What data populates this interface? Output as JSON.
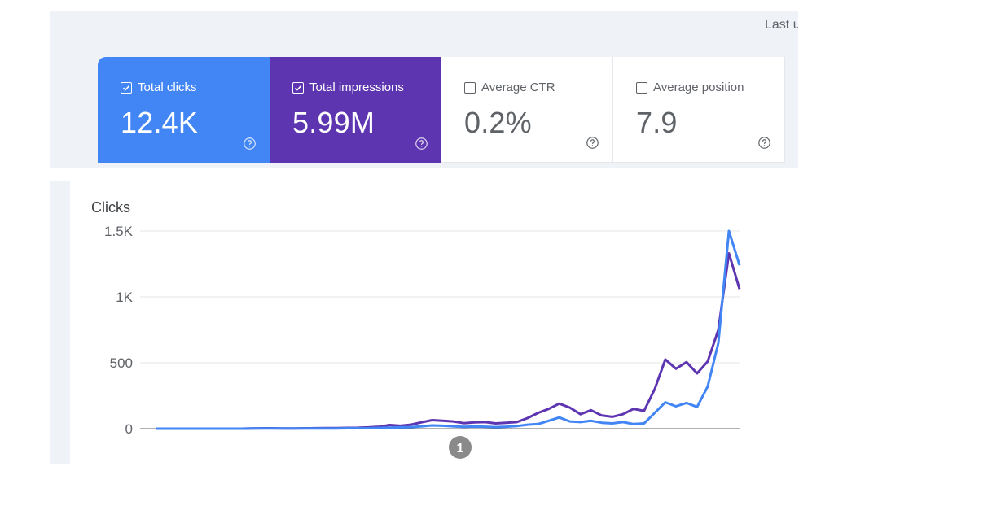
{
  "header": {
    "last_updated_label": "Last updated"
  },
  "cards": [
    {
      "key": "clicks",
      "label": "Total clicks",
      "value": "12.4K",
      "checked": true,
      "color": "#4285f4"
    },
    {
      "key": "impr",
      "label": "Total impressions",
      "value": "5.99M",
      "checked": true,
      "color": "#5e35b1"
    },
    {
      "key": "ctr",
      "label": "Average CTR",
      "value": "0.2%",
      "checked": false
    },
    {
      "key": "pos",
      "label": "Average position",
      "value": "7.9",
      "checked": false
    }
  ],
  "annotation_marker": "1",
  "chart_data": {
    "type": "line",
    "ylabel": "Clicks",
    "ylim": [
      0,
      1500
    ],
    "yticks": [
      0,
      500,
      1000,
      1500
    ],
    "ytick_labels": [
      "0",
      "500",
      "1K",
      "1.5K"
    ],
    "grid": true,
    "series": [
      {
        "color": "#5e35b1",
        "values": [
          0,
          0,
          0,
          0,
          0,
          0,
          0,
          0,
          0,
          2,
          3,
          3,
          2,
          2,
          3,
          4,
          5,
          5,
          6,
          7,
          10,
          15,
          28,
          22,
          30,
          48,
          65,
          60,
          55,
          42,
          48,
          50,
          40,
          45,
          50,
          80,
          120,
          150,
          190,
          160,
          110,
          140,
          100,
          90,
          110,
          150,
          135,
          300,
          525,
          455,
          505,
          420,
          510,
          750,
          1330,
          1060
        ]
      },
      {
        "color": "#4285f4",
        "values": [
          0,
          0,
          0,
          0,
          0,
          0,
          0,
          0,
          0,
          1,
          1,
          1,
          1,
          1,
          1,
          2,
          2,
          2,
          3,
          3,
          4,
          6,
          8,
          10,
          12,
          18,
          25,
          22,
          18,
          14,
          16,
          15,
          12,
          15,
          20,
          30,
          35,
          60,
          85,
          55,
          50,
          60,
          45,
          40,
          50,
          35,
          40,
          120,
          200,
          170,
          195,
          165,
          320,
          650,
          1500,
          1240
        ]
      }
    ]
  }
}
